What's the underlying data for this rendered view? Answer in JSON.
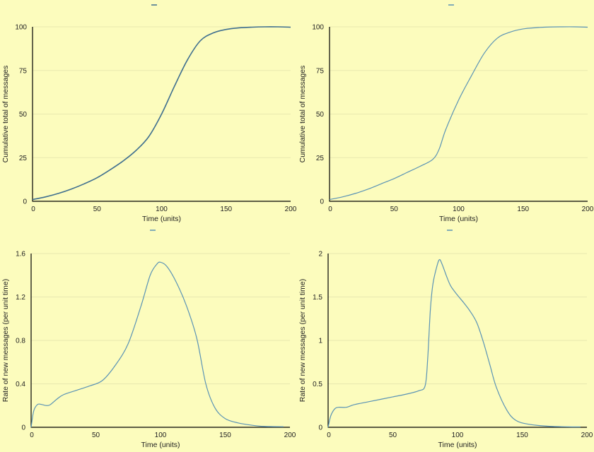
{
  "colors": {
    "background": "#fcfcbd",
    "line_dark": "#3f6f8f",
    "line_light": "#5a93b5",
    "grid": "#e8e8b0",
    "axis": "#000000"
  },
  "chart_data": [
    {
      "id": "cumulative-smooth",
      "type": "line",
      "title": "",
      "legend_marker": "—",
      "xlabel": "Time (units)",
      "ylabel": "Cumulative total of messages",
      "xlim": [
        0,
        200
      ],
      "ylim": [
        0,
        100
      ],
      "xticks": [
        "0",
        "50",
        "100",
        "150",
        "200"
      ],
      "yticks": [
        "0",
        "25",
        "50",
        "75",
        "100"
      ],
      "grid": true,
      "series": [
        {
          "name": "cumulative",
          "x": [
            0,
            10,
            20,
            30,
            40,
            50,
            60,
            70,
            80,
            90,
            100,
            110,
            120,
            130,
            140,
            150,
            160,
            170,
            180,
            190,
            200
          ],
          "y": [
            1,
            2.5,
            4.5,
            7,
            10,
            13.5,
            18,
            23,
            29,
            37,
            50,
            66,
            81,
            92,
            96.5,
            98.5,
            99.4,
            99.8,
            100,
            100,
            99.8
          ]
        }
      ]
    },
    {
      "id": "cumulative-kinked",
      "type": "line",
      "title": "",
      "legend_marker": "—",
      "xlabel": "Time (units)",
      "ylabel": "Cumulative total of messages",
      "xlim": [
        0,
        200
      ],
      "ylim": [
        0,
        100
      ],
      "xticks": [
        "0",
        "50",
        "100",
        "150",
        "200"
      ],
      "yticks": [
        "0",
        "25",
        "50",
        "75",
        "100"
      ],
      "grid": true,
      "series": [
        {
          "name": "cumulative",
          "x": [
            0,
            10,
            20,
            30,
            40,
            50,
            60,
            70,
            80,
            85,
            90,
            100,
            110,
            120,
            130,
            140,
            150,
            160,
            170,
            180,
            190,
            200
          ],
          "y": [
            1,
            2.5,
            4.5,
            7,
            10,
            13,
            16.5,
            20,
            24,
            30,
            41,
            58,
            72,
            85,
            93.5,
            97,
            98.8,
            99.5,
            99.9,
            100,
            100,
            99.8
          ]
        }
      ]
    },
    {
      "id": "rate-smooth",
      "type": "line",
      "title": "",
      "legend_marker": "—",
      "xlabel": "Time (units)",
      "ylabel": "Rate of new messages (per unit time)",
      "xlim": [
        0,
        200
      ],
      "ylim": [
        0,
        1.6
      ],
      "xticks": [
        "0",
        "50",
        "100",
        "150",
        "200"
      ],
      "yticks": [
        "0",
        "0.4",
        "0.8",
        "1.2",
        "1.6"
      ],
      "grid": true,
      "series": [
        {
          "name": "rate",
          "x": [
            0,
            2,
            5,
            8,
            12,
            15,
            20,
            25,
            35,
            45,
            55,
            65,
            75,
            85,
            92,
            97,
            100,
            105,
            112,
            120,
            128,
            135,
            142,
            150,
            160,
            170,
            180,
            195
          ],
          "y": [
            0,
            0.15,
            0.21,
            0.21,
            0.2,
            0.21,
            0.26,
            0.3,
            0.34,
            0.38,
            0.43,
            0.57,
            0.77,
            1.12,
            1.4,
            1.5,
            1.52,
            1.48,
            1.34,
            1.12,
            0.82,
            0.4,
            0.18,
            0.08,
            0.04,
            0.02,
            0.008,
            0.005
          ]
        }
      ]
    },
    {
      "id": "rate-spike",
      "type": "line",
      "title": "",
      "legend_marker": "—",
      "xlabel": "Time (units)",
      "ylabel": "Rate of new messages (per unit time)",
      "xlim": [
        0,
        200
      ],
      "ylim": [
        0,
        2
      ],
      "xticks": [
        "0",
        "50",
        "100",
        "150",
        "200"
      ],
      "yticks": [
        "0",
        "0.5",
        "1",
        "1.5",
        "2"
      ],
      "grid": true,
      "series": [
        {
          "name": "rate",
          "x": [
            0,
            2,
            5,
            8,
            14,
            20,
            30,
            40,
            50,
            60,
            70,
            75,
            77,
            79,
            81,
            84,
            86,
            88,
            92,
            95,
            100,
            105,
            110,
            115,
            120,
            125,
            130,
            138,
            145,
            155,
            170,
            185,
            195
          ],
          "y": [
            0,
            0.13,
            0.21,
            0.23,
            0.23,
            0.26,
            0.29,
            0.32,
            0.35,
            0.38,
            0.42,
            0.48,
            0.8,
            1.35,
            1.65,
            1.85,
            1.93,
            1.88,
            1.72,
            1.62,
            1.52,
            1.43,
            1.33,
            1.2,
            0.98,
            0.72,
            0.46,
            0.2,
            0.08,
            0.035,
            0.012,
            0.005,
            0.004
          ]
        }
      ]
    }
  ]
}
